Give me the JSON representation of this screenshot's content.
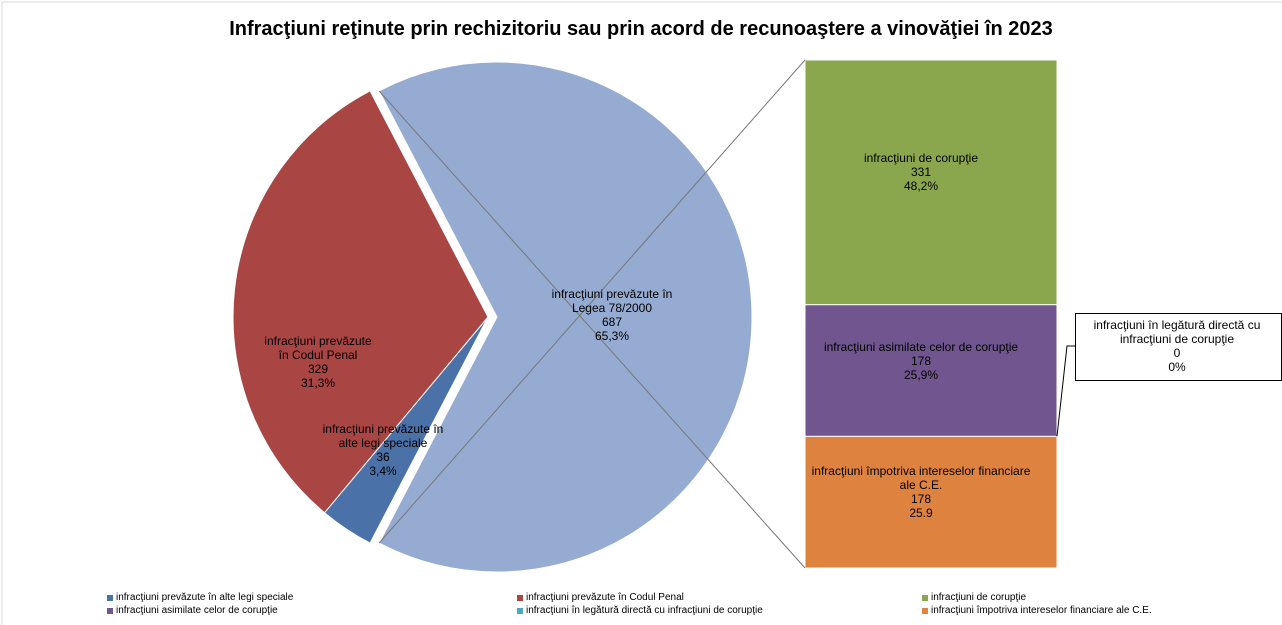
{
  "chart_data": {
    "type": "pie-of-bar",
    "title": "Infracţiuni reţinute prin rechizitoriu sau prin acord de recunoaştere a vinovăţiei în 2023",
    "pie": {
      "categories": [
        "infracţiuni prevăzute în alte legi speciale",
        "infracţiuni prevăzute în Codul Penal",
        "infracţiuni prevăzute în Legea 78/2000"
      ],
      "values": [
        36,
        329,
        687
      ],
      "percents": [
        3.4,
        31.3,
        65.3
      ],
      "percent_labels": [
        "3,4%",
        "31,3%",
        "65,3%"
      ],
      "colors": [
        "#4a72a8",
        "#a94543",
        "#95abd2"
      ]
    },
    "bar": {
      "categories": [
        "infracţiuni de corupţie",
        "infracţiuni asimilate celor de corupţie",
        "infracţiuni în legătură directă cu infracţiuni de corupţie",
        "infracţiuni împotriva intereselor financiare ale C.E."
      ],
      "values": [
        331,
        178,
        0,
        178
      ],
      "percents": [
        48.2,
        25.9,
        0,
        25.9
      ],
      "percent_labels": [
        "48,2%",
        "25,9%",
        "0%",
        "25.9"
      ],
      "colors": [
        "#8aa74e",
        "#70558e",
        "#4aa8c4",
        "#de8240"
      ]
    }
  }
}
